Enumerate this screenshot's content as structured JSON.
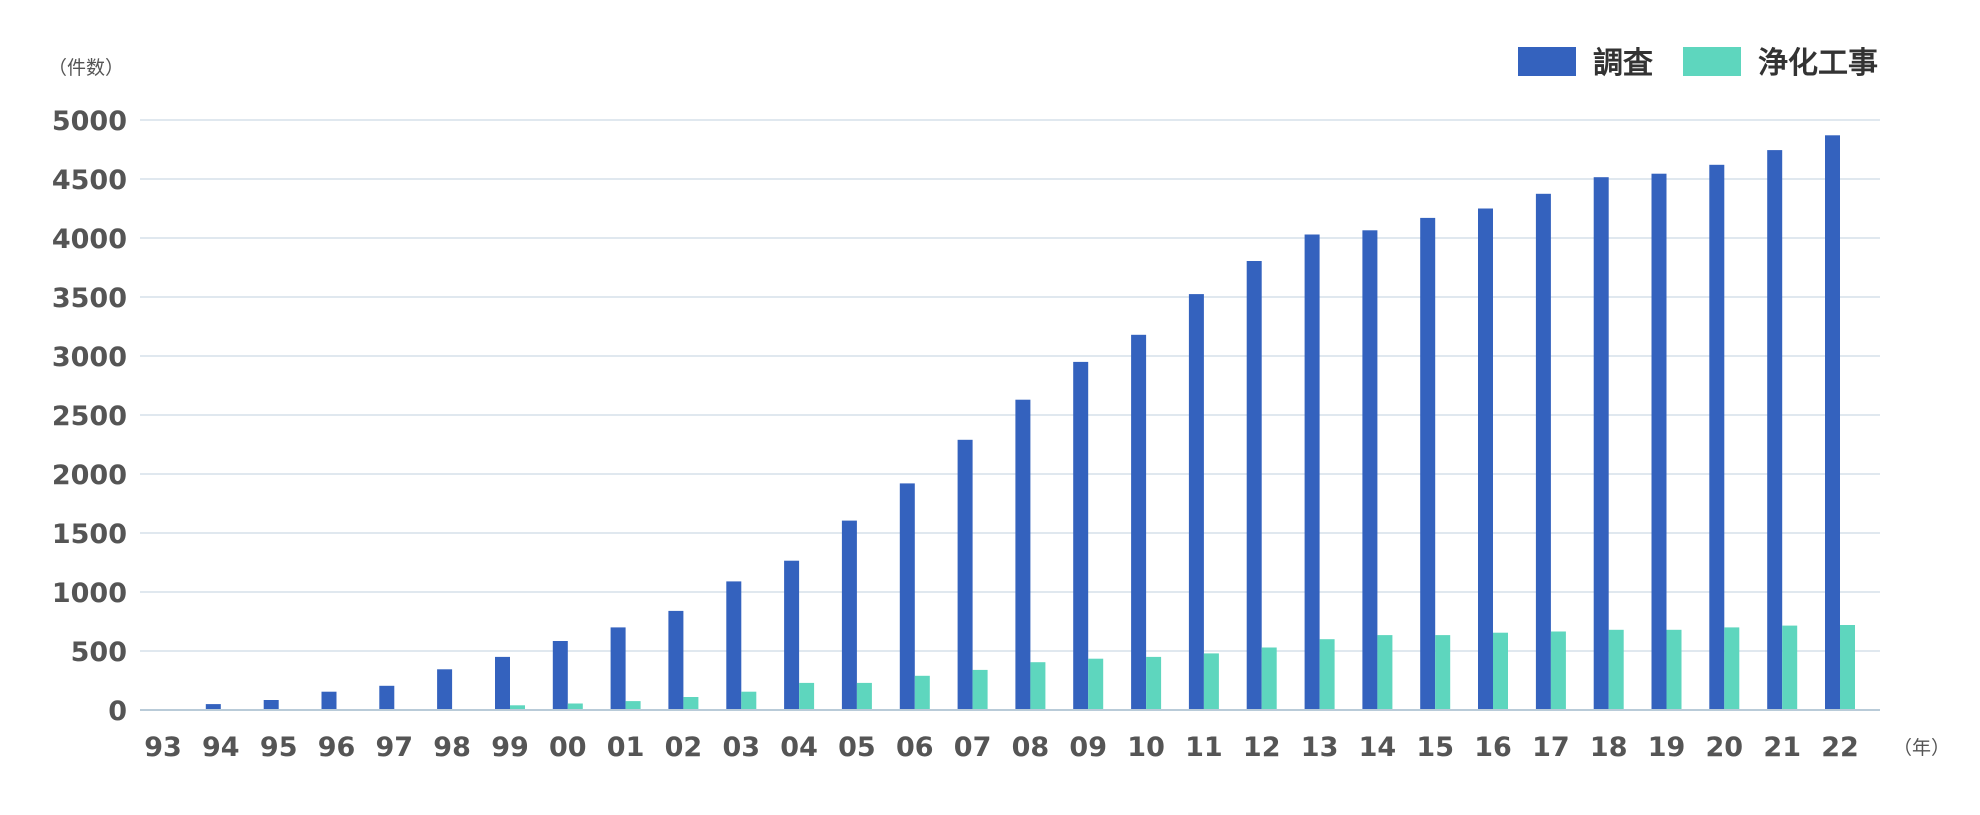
{
  "chart_data": {
    "type": "bar",
    "ylabel": "（件数）",
    "xlabel": "（年）",
    "ylim": [
      0,
      5000
    ],
    "yticks": [
      0,
      500,
      1000,
      1500,
      2000,
      2500,
      3000,
      3500,
      4000,
      4500,
      5000
    ],
    "grid": true,
    "legend_position": "top-right",
    "categories": [
      "93",
      "94",
      "95",
      "96",
      "97",
      "98",
      "99",
      "00",
      "01",
      "02",
      "03",
      "04",
      "05",
      "06",
      "07",
      "08",
      "09",
      "10",
      "11",
      "12",
      "13",
      "14",
      "15",
      "16",
      "17",
      "18",
      "19",
      "20",
      "21",
      "22"
    ],
    "series": [
      {
        "name": "調査",
        "color": "#3462be",
        "values": [
          0,
          50,
          85,
          155,
          205,
          345,
          450,
          585,
          700,
          840,
          1090,
          1265,
          1605,
          1920,
          2290,
          2630,
          2950,
          3180,
          3525,
          3805,
          4030,
          4065,
          4170,
          4250,
          4375,
          4515,
          4545,
          4620,
          4745,
          4870
        ]
      },
      {
        "name": "浄化工事",
        "color": "#5ed6be",
        "values": [
          0,
          0,
          0,
          0,
          0,
          0,
          40,
          55,
          75,
          110,
          155,
          230,
          230,
          290,
          340,
          405,
          435,
          450,
          480,
          530,
          600,
          635,
          635,
          655,
          665,
          680,
          680,
          700,
          715,
          720
        ]
      }
    ]
  }
}
